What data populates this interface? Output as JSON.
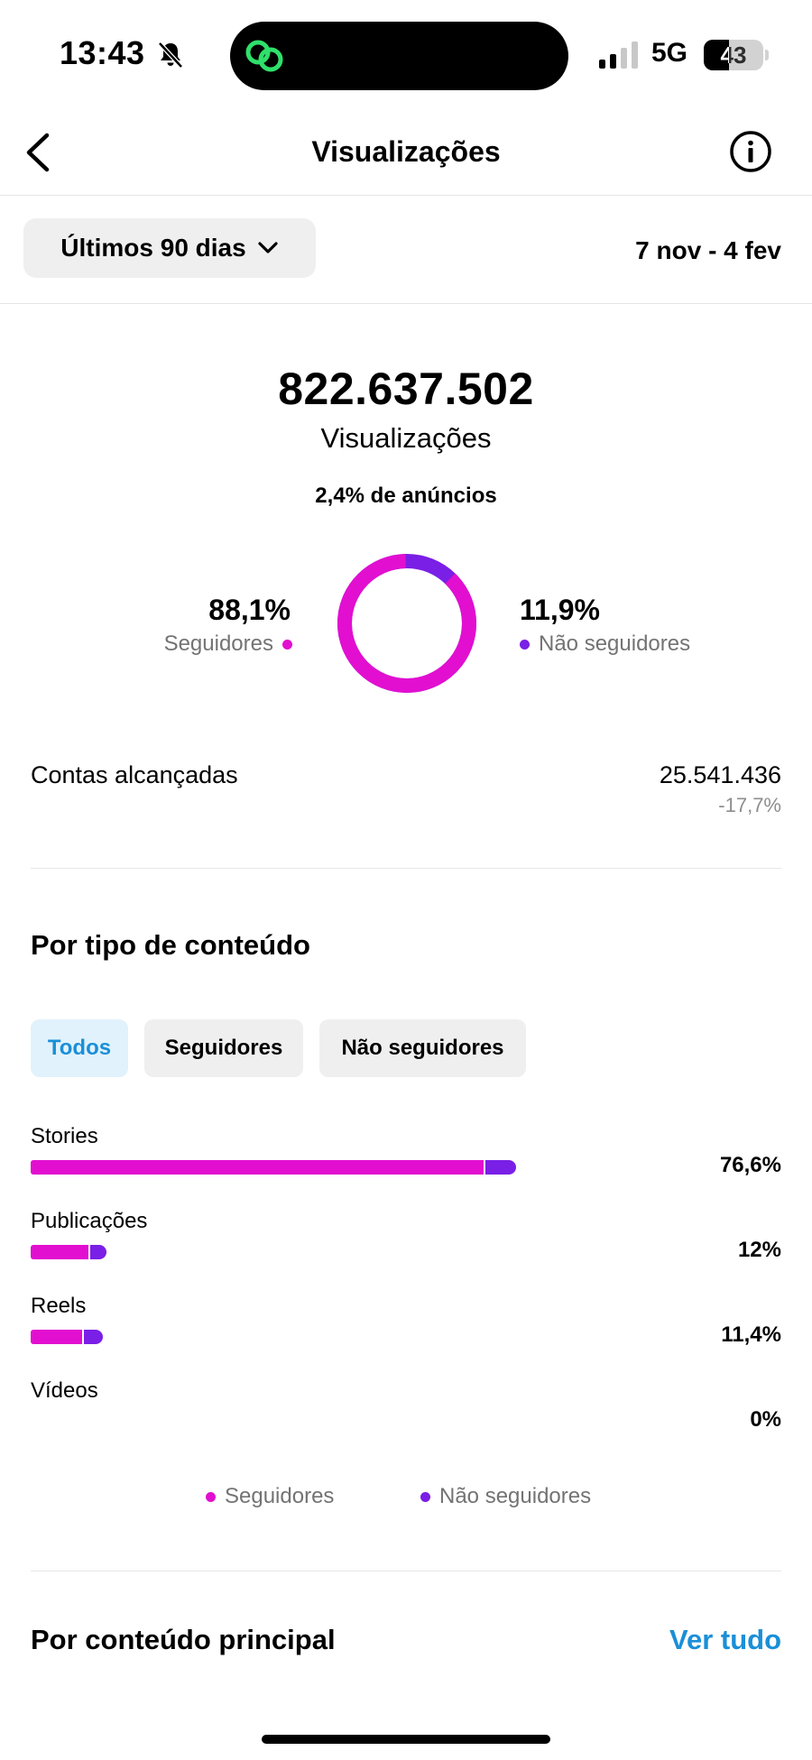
{
  "status": {
    "time": "13:43",
    "network": "5G",
    "battery": "43"
  },
  "colors": {
    "followers": "#e20fd0",
    "non_followers": "#7a1fe6",
    "link": "#1a8fd7"
  },
  "header": {
    "title": "Visualizações"
  },
  "range": {
    "label": "Últimos 90 dias",
    "dates": "7 nov - 4 fev"
  },
  "summary": {
    "total": "822.637.502",
    "label": "Visualizações",
    "ads": "2,4% de anúncios",
    "followers_pct": "88,1%",
    "followers_label": "Seguidores",
    "non_followers_pct": "11,9%",
    "non_followers_label": "Não seguidores",
    "followers_fraction": 0.881
  },
  "reach": {
    "label": "Contas alcançadas",
    "value": "25.541.436",
    "change": "-17,7%"
  },
  "content_type": {
    "title": "Por tipo de conteúdo",
    "tabs": [
      "Todos",
      "Seguidores",
      "Não seguidores"
    ],
    "active_tab": 0,
    "rows": [
      {
        "label": "Stories",
        "pct": "76,6%",
        "value": 76.6,
        "followers_share": 0.935
      },
      {
        "label": "Publicações",
        "pct": "12%",
        "value": 12,
        "followers_share": 0.77
      },
      {
        "label": "Reels",
        "pct": "11,4%",
        "value": 11.4,
        "followers_share": 0.72
      },
      {
        "label": "Vídeos",
        "pct": "0%",
        "value": 0,
        "followers_share": 0
      }
    ],
    "legend": [
      "Seguidores",
      "Não seguidores"
    ]
  },
  "top_content": {
    "title": "Por conteúdo principal",
    "see_all": "Ver tudo"
  }
}
